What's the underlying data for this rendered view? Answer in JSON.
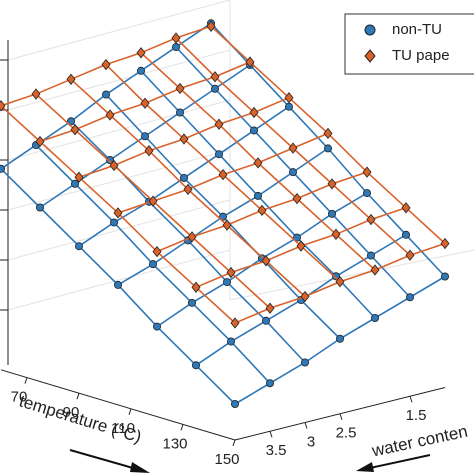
{
  "chart_data": {
    "type": "surface3d",
    "x_label": "temperature (°C)",
    "y_label": "water conten",
    "x": [
      60,
      75,
      90,
      105,
      120,
      135,
      150
    ],
    "y": [
      1,
      1.5,
      2,
      2.5,
      3,
      3.5,
      4
    ],
    "xlim": [
      60,
      150
    ],
    "ylim": [
      1,
      4
    ],
    "zlim": [
      0,
      10
    ],
    "xticks": [
      70,
      90,
      110,
      130,
      150
    ],
    "yticks": [
      3.5,
      3,
      2.5,
      1.5
    ],
    "legend": "upper right",
    "series": [
      {
        "name": "non-TU",
        "color": "#2f78b8",
        "marker": "circle",
        "z": [
          [
            9.8,
            9.3,
            8.8,
            8.3,
            7.7,
            7.2,
            6.7
          ],
          [
            8.8,
            8.3,
            7.8,
            7.3,
            6.8,
            6.3,
            5.8
          ],
          [
            7.8,
            7.3,
            6.8,
            6.3,
            5.8,
            5.4,
            4.9
          ],
          [
            6.8,
            6.3,
            5.8,
            5.4,
            4.9,
            4.4,
            4.0
          ],
          [
            5.7,
            5.3,
            4.8,
            4.4,
            3.9,
            3.5,
            3.0
          ],
          [
            4.7,
            4.3,
            3.9,
            3.4,
            3.0,
            2.6,
            2.1
          ],
          [
            3.7,
            3.3,
            2.9,
            2.5,
            2.0,
            1.6,
            1.2
          ]
        ]
      },
      {
        "name": "TU pape",
        "color": "#d9622b",
        "marker": "diamond",
        "z": [
          [
            9.7,
            9.6,
            9.4,
            9.3,
            9.1,
            8.9,
            8.8
          ],
          [
            8.9,
            8.7,
            8.6,
            8.4,
            8.3,
            8.1,
            8.0
          ],
          [
            8.1,
            7.9,
            7.8,
            7.6,
            7.5,
            7.3,
            7.2
          ],
          [
            7.3,
            7.1,
            6.9,
            6.8,
            6.6,
            6.5,
            6.4
          ],
          [
            6.4,
            6.3,
            6.1,
            6.0,
            5.8,
            5.7,
            5.5
          ],
          [
            5.6,
            5.5,
            5.3,
            5.2,
            5.0,
            4.9,
            4.7
          ],
          [
            4.8,
            4.7,
            4.5,
            4.4,
            4.2,
            4.1,
            3.9
          ]
        ]
      }
    ]
  }
}
